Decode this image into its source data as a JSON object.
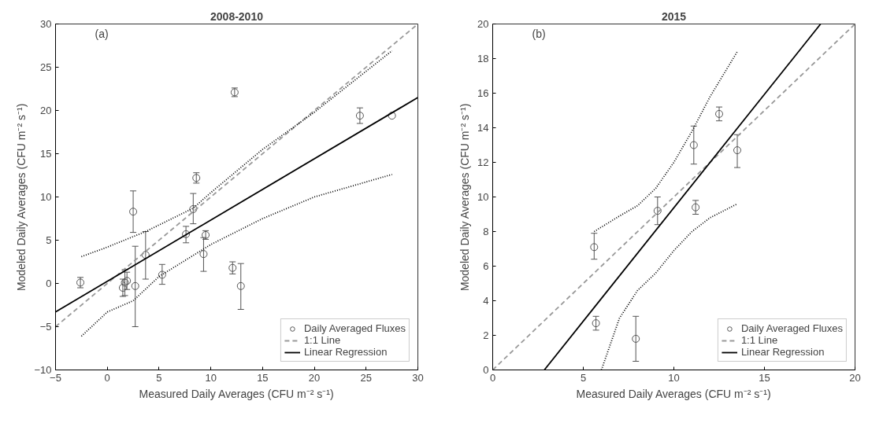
{
  "chart_data": [
    {
      "type": "scatter",
      "title": "2008-2010",
      "xlabel": "Measured Daily Averages (CFU m⁻² s⁻¹)",
      "ylabel": "Modeled Daily Averages (CFU m⁻² s⁻¹)",
      "annotations": [
        "(a)"
      ],
      "xlim": [
        -5,
        30
      ],
      "ylim": [
        -10,
        30
      ],
      "xticks": [
        -5,
        0,
        5,
        10,
        15,
        20,
        25,
        30
      ],
      "yticks": [
        -10,
        -5,
        0,
        5,
        10,
        15,
        20,
        25,
        30
      ],
      "grid": false,
      "legend": "bottom right",
      "series": [
        {
          "name": "Daily Averaged Fluxes",
          "color": "#555555",
          "marker": "circle",
          "x": [
            -2.6,
            1.5,
            1.7,
            1.9,
            2.5,
            2.7,
            3.7,
            5.3,
            7.6,
            8.3,
            8.6,
            9.3,
            9.5,
            12.1,
            12.3,
            12.9,
            24.4,
            27.5
          ],
          "values": [
            0.1,
            -0.5,
            0.1,
            0.3,
            8.3,
            -0.3,
            3.3,
            1.0,
            5.7,
            8.6,
            12.2,
            3.4,
            5.6,
            1.8,
            22.1,
            -0.3,
            19.4,
            19.4
          ],
          "errors": [
            0.6,
            1.0,
            1.5,
            1.0,
            [
              5.9,
              10.7
            ],
            [
              -5.0,
              4.3
            ],
            [
              0.5,
              6.0
            ],
            [
              -0.1,
              2.2
            ],
            [
              4.7,
              6.6
            ],
            [
              6.9,
              10.4
            ],
            0.6,
            [
              1.4,
              5.3
            ],
            0.5,
            [
              1.1,
              2.5
            ],
            0.5,
            [
              -3.0,
              2.3
            ],
            0.9,
            null
          ]
        },
        {
          "type": "line",
          "name": "1:1 Line",
          "color": "#999999",
          "line_style": "dashed",
          "x": [
            -5,
            30
          ],
          "values": [
            -5,
            30
          ]
        },
        {
          "type": "line",
          "name": "Linear Regression",
          "color": "#000000",
          "line_style": "solid",
          "x": [
            -5,
            30
          ],
          "values": [
            -3.3,
            21.5
          ]
        },
        {
          "type": "line",
          "color": "#000000",
          "line_style": "dotted",
          "x": [
            -2.5,
            0,
            3.7,
            8.3,
            10,
            15,
            20,
            27.5
          ],
          "values": [
            3.1,
            4.2,
            6.0,
            8.7,
            10.5,
            15.5,
            19.8,
            26.9
          ]
        },
        {
          "type": "line",
          "color": "#000000",
          "line_style": "dotted",
          "x": [
            -2.5,
            0,
            2.5,
            5,
            10,
            15,
            20,
            27.5
          ],
          "values": [
            -6.1,
            -3.3,
            -2.0,
            0.8,
            4.5,
            7.5,
            10.0,
            12.6
          ]
        }
      ]
    },
    {
      "type": "scatter",
      "title": "2015",
      "xlabel": "Measured Daily Averages (CFU m⁻² s⁻¹)",
      "ylabel": "Modeled Daily Averages (CFU m⁻² s⁻¹)",
      "annotations": [
        "(b)"
      ],
      "xlim": [
        0,
        20
      ],
      "ylim": [
        0,
        20
      ],
      "xticks": [
        0,
        5,
        10,
        15,
        20
      ],
      "yticks": [
        0,
        2,
        4,
        6,
        8,
        10,
        12,
        14,
        16,
        18,
        20
      ],
      "grid": false,
      "legend": "bottom right",
      "series": [
        {
          "name": "Daily Averaged Fluxes",
          "color": "#555555",
          "marker": "circle",
          "x": [
            5.6,
            5.7,
            7.9,
            9.1,
            11.1,
            11.2,
            12.5,
            13.5
          ],
          "values": [
            7.1,
            2.7,
            1.8,
            9.2,
            13.0,
            9.4,
            14.8,
            12.7
          ],
          "errors": [
            [
              6.4,
              7.9
            ],
            0.4,
            [
              0.5,
              3.1
            ],
            [
              8.4,
              10.0
            ],
            [
              11.9,
              14.1
            ],
            0.4,
            0.4,
            [
              11.7,
              13.6
            ]
          ]
        },
        {
          "type": "line",
          "name": "1:1 Line",
          "color": "#999999",
          "line_style": "dashed",
          "x": [
            0,
            20
          ],
          "values": [
            0,
            20
          ]
        },
        {
          "type": "line",
          "name": "Linear Regression",
          "color": "#000000",
          "line_style": "solid",
          "x": [
            2.85,
            18.1
          ],
          "values": [
            0,
            20
          ]
        },
        {
          "type": "line",
          "color": "#000000",
          "line_style": "dotted",
          "x": [
            5.6,
            7,
            8,
            9,
            10,
            11,
            12,
            13.5
          ],
          "values": [
            8.0,
            8.9,
            9.5,
            10.5,
            12.0,
            13.8,
            15.8,
            18.4
          ]
        },
        {
          "type": "line",
          "color": "#000000",
          "line_style": "dotted",
          "x": [
            6,
            7,
            8,
            9,
            10,
            11,
            12,
            13.5
          ],
          "values": [
            0,
            3.0,
            4.6,
            5.6,
            6.9,
            8.0,
            8.8,
            9.6
          ]
        }
      ]
    }
  ]
}
